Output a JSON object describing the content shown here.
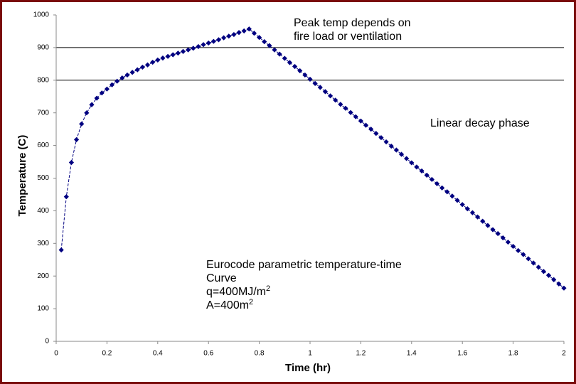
{
  "chart_data": {
    "type": "line",
    "x_label": "Time (hr)",
    "y_label": "Temperature (C)",
    "xlim": [
      0,
      2
    ],
    "xticks": [
      0,
      0.2,
      0.4,
      0.6,
      0.8,
      1,
      1.2,
      1.4,
      1.6,
      1.8,
      2
    ],
    "ylim": [
      0,
      1000
    ],
    "yticks": [
      0,
      100,
      200,
      300,
      400,
      500,
      600,
      700,
      800,
      900,
      1000
    ],
    "grid_at": [
      800,
      900
    ],
    "series": [
      {
        "name": "Eurocode parametric temperature-time",
        "color": "#000080",
        "x": [
          0.02,
          0.04,
          0.06,
          0.08,
          0.1,
          0.12,
          0.14,
          0.16,
          0.18,
          0.2,
          0.22,
          0.24,
          0.26,
          0.28,
          0.3,
          0.32,
          0.34,
          0.36,
          0.38,
          0.4,
          0.42,
          0.44,
          0.46,
          0.48,
          0.5,
          0.52,
          0.54,
          0.56,
          0.58,
          0.6,
          0.62,
          0.64,
          0.66,
          0.68,
          0.7,
          0.72,
          0.74,
          0.76,
          0.78,
          0.8,
          0.82,
          0.84,
          0.86,
          0.88,
          0.9,
          0.92,
          0.94,
          0.96,
          0.98,
          1,
          1.02,
          1.04,
          1.06,
          1.08,
          1.1,
          1.12,
          1.14,
          1.16,
          1.18,
          1.2,
          1.22,
          1.24,
          1.26,
          1.28,
          1.3,
          1.32,
          1.34,
          1.36,
          1.38,
          1.4,
          1.42,
          1.44,
          1.46,
          1.48,
          1.5,
          1.52,
          1.54,
          1.56,
          1.58,
          1.6,
          1.62,
          1.64,
          1.66,
          1.68,
          1.7,
          1.72,
          1.74,
          1.76,
          1.78,
          1.8,
          1.82,
          1.84,
          1.86,
          1.88,
          1.9,
          1.92,
          1.94,
          1.96,
          1.98,
          2
        ],
        "values": [
          280,
          443,
          548,
          618,
          666,
          700,
          725,
          745,
          761,
          773,
          786,
          797,
          807,
          816,
          824,
          832,
          840,
          847,
          855,
          862,
          868,
          873,
          878,
          883,
          888,
          893,
          898,
          903,
          909,
          914,
          919,
          924,
          930,
          935,
          940,
          946,
          951,
          957,
          944,
          931,
          918,
          906,
          893,
          880,
          867,
          854,
          842,
          829,
          816,
          803,
          790,
          778,
          765,
          752,
          739,
          726,
          714,
          701,
          688,
          675,
          662,
          650,
          637,
          624,
          611,
          598,
          586,
          573,
          560,
          547,
          534,
          522,
          509,
          496,
          483,
          470,
          458,
          445,
          432,
          419,
          406,
          394,
          381,
          368,
          355,
          342,
          330,
          317,
          304,
          291,
          278,
          266,
          253,
          240,
          227,
          214,
          202,
          189,
          176,
          163
        ]
      }
    ],
    "annotations": [
      {
        "lines": [
          {
            "text": "Peak temp depends on"
          },
          {
            "text": "fire load or ventilation"
          }
        ],
        "color": "#000000"
      },
      {
        "lines": [
          {
            "text": "Linear decay phase"
          }
        ],
        "color": "#000000"
      },
      {
        "lines": [
          {
            "text": "Eurocode parametric temperature-time"
          },
          {
            "text": "Curve"
          },
          {
            "text": "q=400MJ/m",
            "sup": "2"
          },
          {
            "text": "A=400m",
            "sup": "2"
          }
        ],
        "color": "#d2450f"
      }
    ]
  }
}
